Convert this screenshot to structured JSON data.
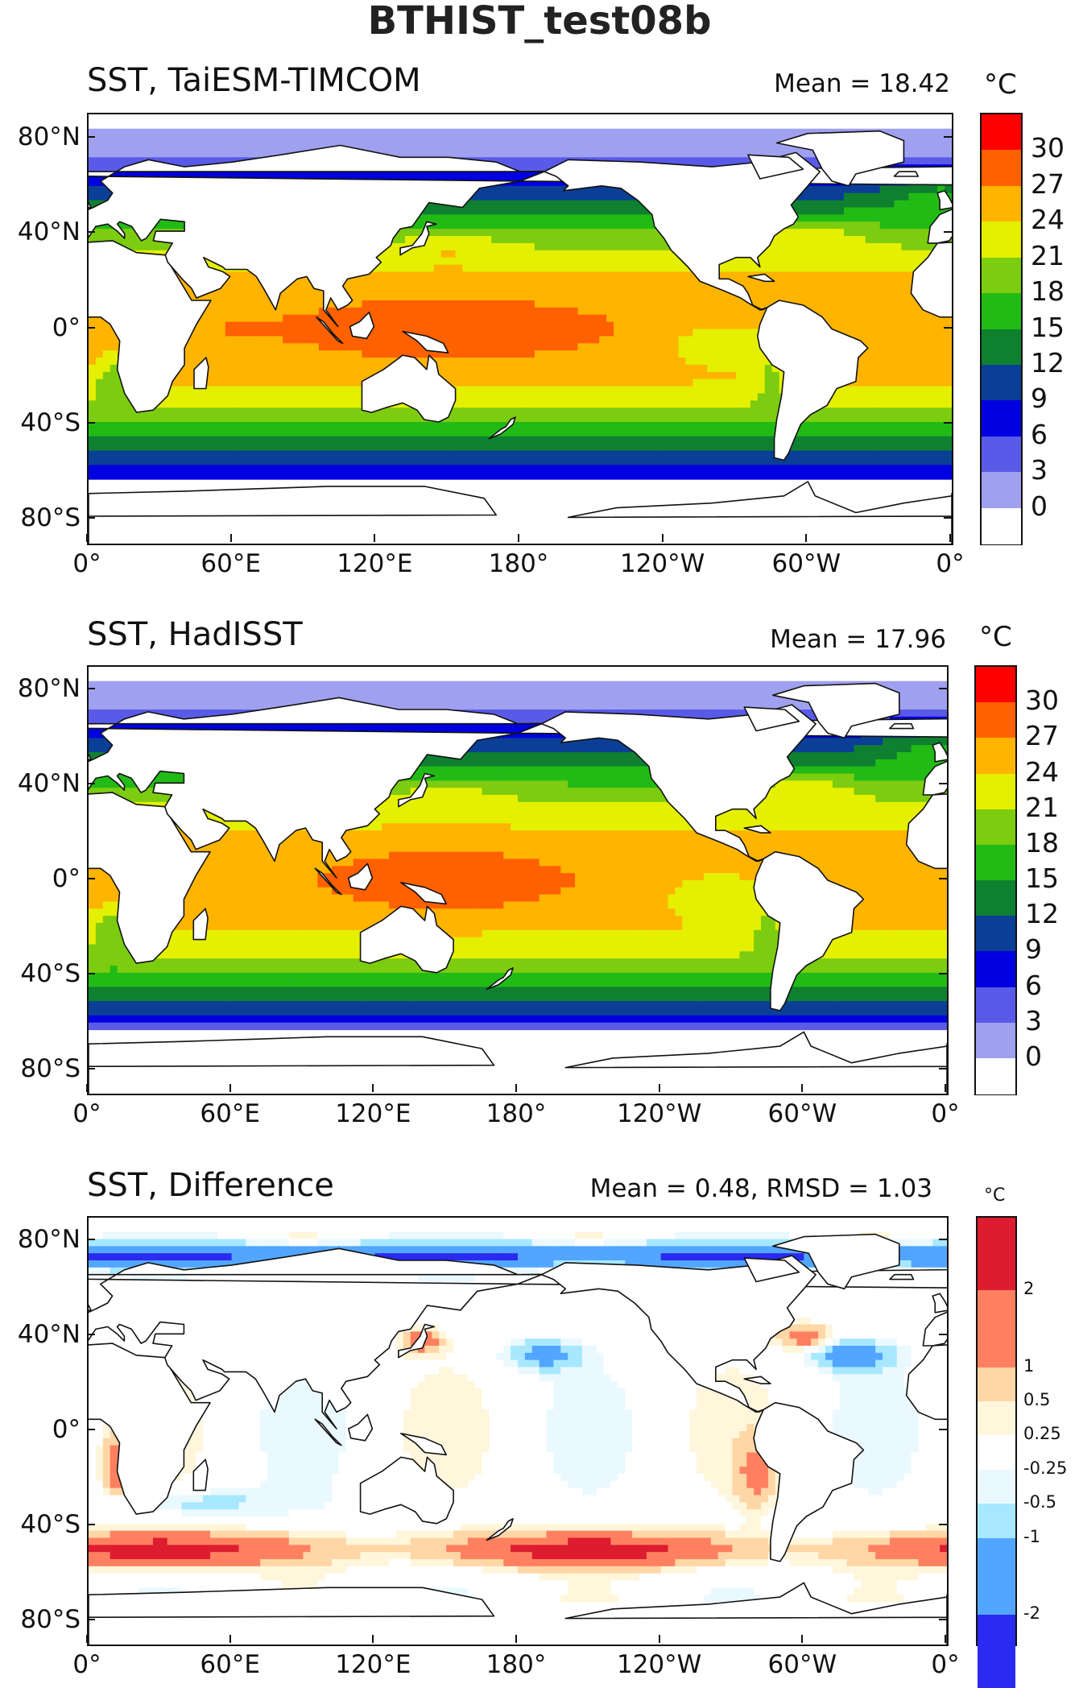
{
  "title": "BTHIST_test08b",
  "chart_data": [
    {
      "type": "heatmap",
      "panel": "model",
      "title": "SST, TaiESM-TIMCOM",
      "stat": "Mean = 18.42",
      "unit": "°C",
      "x_ticks": [
        "0°",
        "60°E",
        "120°E",
        "180°",
        "120°W",
        "60°W",
        "0°"
      ],
      "y_ticks": [
        "80°N",
        "40°N",
        "0°",
        "40°S",
        "80°S"
      ],
      "colorbar_levels": [
        "30",
        "27",
        "24",
        "21",
        "18",
        "15",
        "12",
        "9",
        "6",
        "3",
        "0"
      ],
      "mean": 18.42
    },
    {
      "type": "heatmap",
      "panel": "obs",
      "title": "SST, HadISST",
      "stat": "Mean = 17.96",
      "unit": "°C",
      "x_ticks": [
        "0°",
        "60°E",
        "120°E",
        "180°",
        "120°W",
        "60°W",
        "0°"
      ],
      "y_ticks": [
        "80°N",
        "40°N",
        "0°",
        "40°S",
        "80°S"
      ],
      "colorbar_levels": [
        "30",
        "27",
        "24",
        "21",
        "18",
        "15",
        "12",
        "9",
        "6",
        "3",
        "0"
      ],
      "mean": 17.96
    },
    {
      "type": "heatmap",
      "panel": "diff",
      "title": "SST, Difference",
      "stat": "Mean = 0.48, RMSD = 1.03",
      "unit": "°C",
      "x_ticks": [
        "0°",
        "60°E",
        "120°E",
        "180°",
        "120°W",
        "60°W",
        "0°"
      ],
      "y_ticks": [
        "80°N",
        "40°N",
        "0°",
        "40°S",
        "80°S"
      ],
      "colorbar_levels": [
        "2",
        "1",
        "0.5",
        "0.25",
        "-0.25",
        "-0.5",
        "-1",
        "-2"
      ],
      "mean": 0.48,
      "rmsd": 1.03
    }
  ],
  "colors": {
    "sst": [
      "#a0a0f0",
      "#5a5ae8",
      "#0000e0",
      "#0b3f96",
      "#0f8030",
      "#22bb16",
      "#7ccc10",
      "#e4f000",
      "#ffb400",
      "#ff6000",
      "#ff0000"
    ],
    "diff": [
      "#2a2af0",
      "#52a6ff",
      "#a8e8ff",
      "#eaf9ff",
      "#ffffff",
      "#fff6dc",
      "#ffd6a6",
      "#ff8060",
      "#dd1c30"
    ]
  }
}
